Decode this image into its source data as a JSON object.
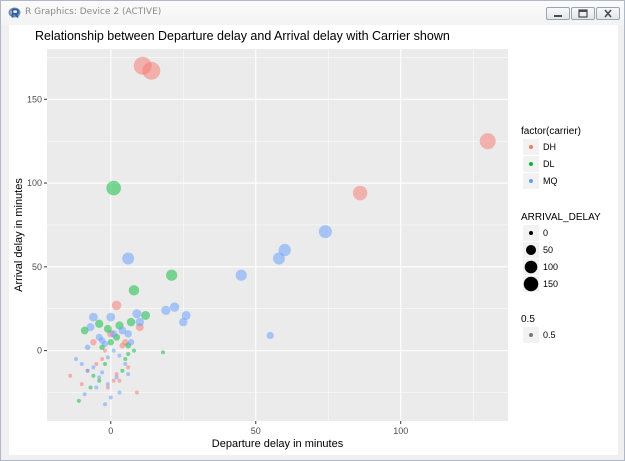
{
  "window": {
    "title": "R Graphics: Device 2 (ACTIVE)",
    "controls": [
      "minimize",
      "maximize",
      "close"
    ],
    "icon": "r-logo-icon"
  },
  "chart_data": {
    "type": "scatter",
    "title": "Relationship between Departure delay and Arrival delay with Carrier shown",
    "xlabel": "Departure delay in minutes",
    "ylabel": "Arrival delay in minutes",
    "xlim": [
      -22,
      137
    ],
    "ylim": [
      -42,
      180
    ],
    "xticks": [
      0,
      50,
      100
    ],
    "yticks": [
      0,
      50,
      100,
      150
    ],
    "xtick_labels": [
      "0",
      "50",
      "100"
    ],
    "ytick_labels": [
      "0",
      "50",
      "100",
      "150"
    ],
    "grid": true,
    "legend_position": "right",
    "legends": [
      {
        "title": "factor(carrier)",
        "kind": "color",
        "items": [
          {
            "label": "DH",
            "color": "#F8766D"
          },
          {
            "label": "DL",
            "color": "#00BA38"
          },
          {
            "label": "MQ",
            "color": "#619CFF"
          }
        ]
      },
      {
        "title": "ARRIVAL_DELAY",
        "kind": "size",
        "items": [
          {
            "label": "0",
            "value": 0
          },
          {
            "label": "50",
            "value": 50
          },
          {
            "label": "100",
            "value": 100
          },
          {
            "label": "150",
            "value": 150
          }
        ]
      },
      {
        "title": "0.5",
        "kind": "alpha",
        "items": [
          {
            "label": "0.5",
            "value": 0.5
          }
        ]
      }
    ],
    "series": [
      {
        "name": "DH",
        "color": "#F8766D",
        "points": [
          {
            "x": 11,
            "y": 170
          },
          {
            "x": 14,
            "y": 167
          },
          {
            "x": 130,
            "y": 125
          },
          {
            "x": 86,
            "y": 94
          },
          {
            "x": 2,
            "y": 27
          },
          {
            "x": 5,
            "y": 5
          },
          {
            "x": -14,
            "y": -15
          },
          {
            "x": -10,
            "y": -20
          },
          {
            "x": -8,
            "y": -12
          },
          {
            "x": -5,
            "y": -8
          },
          {
            "x": -2,
            "y": 0
          },
          {
            "x": 1,
            "y": -18
          },
          {
            "x": 3,
            "y": -18
          },
          {
            "x": 6,
            "y": -10
          },
          {
            "x": 9,
            "y": -25
          },
          {
            "x": -3,
            "y": -5
          },
          {
            "x": 0,
            "y": 10
          },
          {
            "x": 4,
            "y": 3
          },
          {
            "x": 10,
            "y": 14
          },
          {
            "x": -6,
            "y": 5
          },
          {
            "x": 2,
            "y": -14
          },
          {
            "x": -1,
            "y": -22
          }
        ]
      },
      {
        "name": "DL",
        "color": "#00BA38",
        "points": [
          {
            "x": 1,
            "y": 97
          },
          {
            "x": 21,
            "y": 45
          },
          {
            "x": 8,
            "y": 36
          },
          {
            "x": 12,
            "y": 21
          },
          {
            "x": 18,
            "y": -1
          },
          {
            "x": 7,
            "y": 17
          },
          {
            "x": 3,
            "y": 15
          },
          {
            "x": -9,
            "y": 12
          },
          {
            "x": -4,
            "y": 16
          },
          {
            "x": 0,
            "y": 5
          },
          {
            "x": 6,
            "y": 3
          },
          {
            "x": 8,
            "y": 0
          },
          {
            "x": 5,
            "y": -5
          },
          {
            "x": -2,
            "y": -8
          },
          {
            "x": -11,
            "y": -30
          },
          {
            "x": -6,
            "y": -15
          },
          {
            "x": 2,
            "y": 8
          },
          {
            "x": -3,
            "y": 2
          },
          {
            "x": 4,
            "y": -12
          },
          {
            "x": -1,
            "y": 13
          },
          {
            "x": 6,
            "y": -2
          },
          {
            "x": -7,
            "y": -22
          },
          {
            "x": -4,
            "y": -18
          }
        ]
      },
      {
        "name": "MQ",
        "color": "#619CFF",
        "points": [
          {
            "x": 74,
            "y": 71
          },
          {
            "x": 60,
            "y": 60
          },
          {
            "x": 58,
            "y": 55
          },
          {
            "x": 45,
            "y": 45
          },
          {
            "x": 6,
            "y": 55
          },
          {
            "x": 26,
            "y": 21
          },
          {
            "x": 25,
            "y": 17
          },
          {
            "x": 22,
            "y": 26
          },
          {
            "x": 19,
            "y": 24
          },
          {
            "x": 55,
            "y": 9
          },
          {
            "x": 9,
            "y": 22
          },
          {
            "x": 10,
            "y": 17
          },
          {
            "x": 6,
            "y": 10
          },
          {
            "x": 0,
            "y": 20
          },
          {
            "x": -6,
            "y": 20
          },
          {
            "x": -4,
            "y": 8
          },
          {
            "x": -2,
            "y": 4
          },
          {
            "x": 1,
            "y": 0
          },
          {
            "x": -8,
            "y": 2
          },
          {
            "x": -12,
            "y": -5
          },
          {
            "x": -10,
            "y": -8
          },
          {
            "x": -6,
            "y": -10
          },
          {
            "x": -3,
            "y": -13
          },
          {
            "x": -1,
            "y": -4
          },
          {
            "x": 3,
            "y": -3
          },
          {
            "x": 5,
            "y": -8
          },
          {
            "x": 2,
            "y": -16
          },
          {
            "x": -5,
            "y": -22
          },
          {
            "x": -9,
            "y": -26
          },
          {
            "x": -2,
            "y": -32
          },
          {
            "x": 0,
            "y": -28
          },
          {
            "x": 4,
            "y": 12
          },
          {
            "x": -7,
            "y": 14
          },
          {
            "x": 1,
            "y": 10
          },
          {
            "x": 7,
            "y": 5
          },
          {
            "x": -4,
            "y": -16
          },
          {
            "x": -8,
            "y": -12
          },
          {
            "x": -1,
            "y": -20
          },
          {
            "x": 3,
            "y": -25
          },
          {
            "x": -3,
            "y": 6
          },
          {
            "x": 6,
            "y": -14
          }
        ]
      }
    ]
  }
}
